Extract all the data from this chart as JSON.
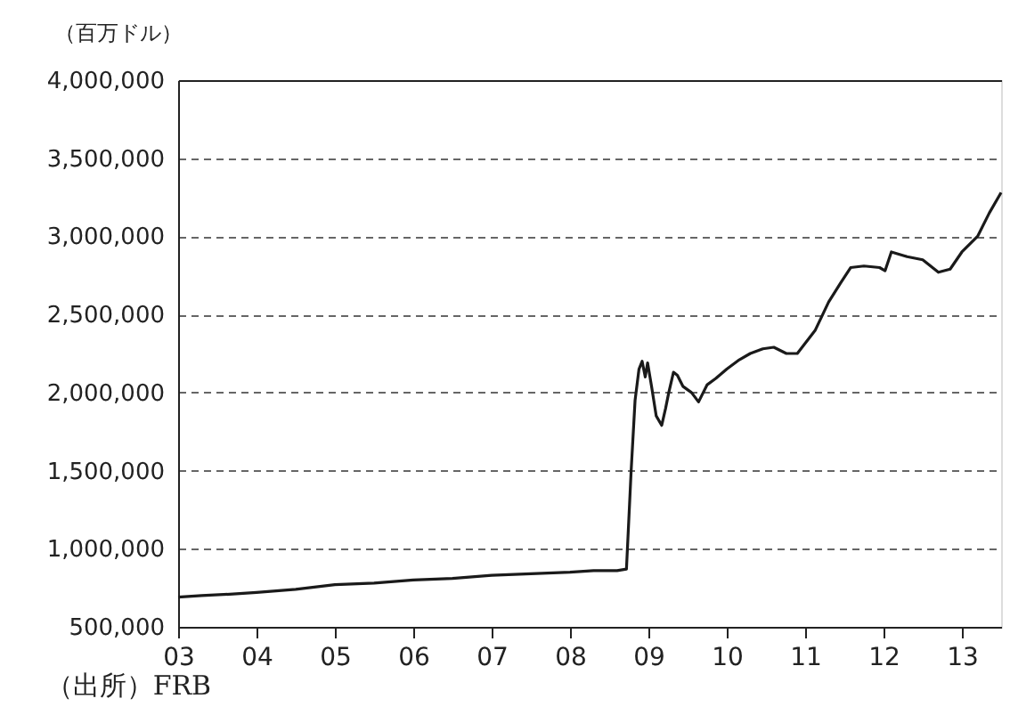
{
  "chart_data": {
    "type": "line",
    "ylabel": "（百万ドル）",
    "annotations": [
      "（出所）FRB"
    ],
    "xlim": [
      2003,
      2013.5
    ],
    "xticks": [
      {
        "value": 2003,
        "label": "03"
      },
      {
        "value": 2004,
        "label": "04"
      },
      {
        "value": 2005,
        "label": "05"
      },
      {
        "value": 2006,
        "label": "06"
      },
      {
        "value": 2007,
        "label": "07"
      },
      {
        "value": 2008,
        "label": "08"
      },
      {
        "value": 2009,
        "label": "09"
      },
      {
        "value": 2010,
        "label": "10"
      },
      {
        "value": 2011,
        "label": "11"
      },
      {
        "value": 2012,
        "label": "12"
      },
      {
        "value": 2013,
        "label": "13"
      }
    ],
    "ylim": [
      500000,
      4000000
    ],
    "yticks": [
      {
        "value": 500000,
        "label": "500,000"
      },
      {
        "value": 1000000,
        "label": "1,000,000"
      },
      {
        "value": 1500000,
        "label": "1,500,000"
      },
      {
        "value": 2000000,
        "label": "2,000,000"
      },
      {
        "value": 2500000,
        "label": "2,500,000"
      },
      {
        "value": 3000000,
        "label": "3,000,000"
      },
      {
        "value": 3500000,
        "label": "3,500,000"
      },
      {
        "value": 4000000,
        "label": "4,000,000"
      }
    ],
    "grid": "y",
    "marker": "none",
    "line_style": "solid",
    "series": [
      {
        "color": "#1a1a1a",
        "x": [
          2003,
          2003.3,
          2003.7,
          2004,
          2004.5,
          2005,
          2005.5,
          2006,
          2006.5,
          2007,
          2007.5,
          2008,
          2008.3,
          2008.6,
          2008.72,
          2008.78,
          2008.83,
          2008.88,
          2008.92,
          2008.96,
          2008.99,
          2009.04,
          2009.1,
          2009.17,
          2009.22,
          2009.26,
          2009.32,
          2009.37,
          2009.44,
          2009.55,
          2009.64,
          2009.75,
          2009.86,
          2010,
          2010.16,
          2010.3,
          2010.46,
          2010.6,
          2010.76,
          2010.9,
          2011.13,
          2011.3,
          2011.45,
          2011.58,
          2011.75,
          2011.95,
          2012.02,
          2012.1,
          2012.3,
          2012.5,
          2012.7,
          2012.85,
          2013,
          2013.2,
          2013.35,
          2013.5
        ],
        "values": [
          690000,
          700000,
          710000,
          720000,
          740000,
          770000,
          780000,
          800000,
          810000,
          830000,
          840000,
          850000,
          860000,
          860000,
          870000,
          1500000,
          1950000,
          2150000,
          2200000,
          2100000,
          2190000,
          2040000,
          1850000,
          1790000,
          1900000,
          2000000,
          2130000,
          2110000,
          2040000,
          2000000,
          1940000,
          2050000,
          2090000,
          2150000,
          2210000,
          2250000,
          2280000,
          2290000,
          2250000,
          2250000,
          2400000,
          2580000,
          2700000,
          2800000,
          2810000,
          2800000,
          2780000,
          2900000,
          2870000,
          2850000,
          2770000,
          2790000,
          2900000,
          3000000,
          3150000,
          3280000
        ]
      }
    ]
  }
}
